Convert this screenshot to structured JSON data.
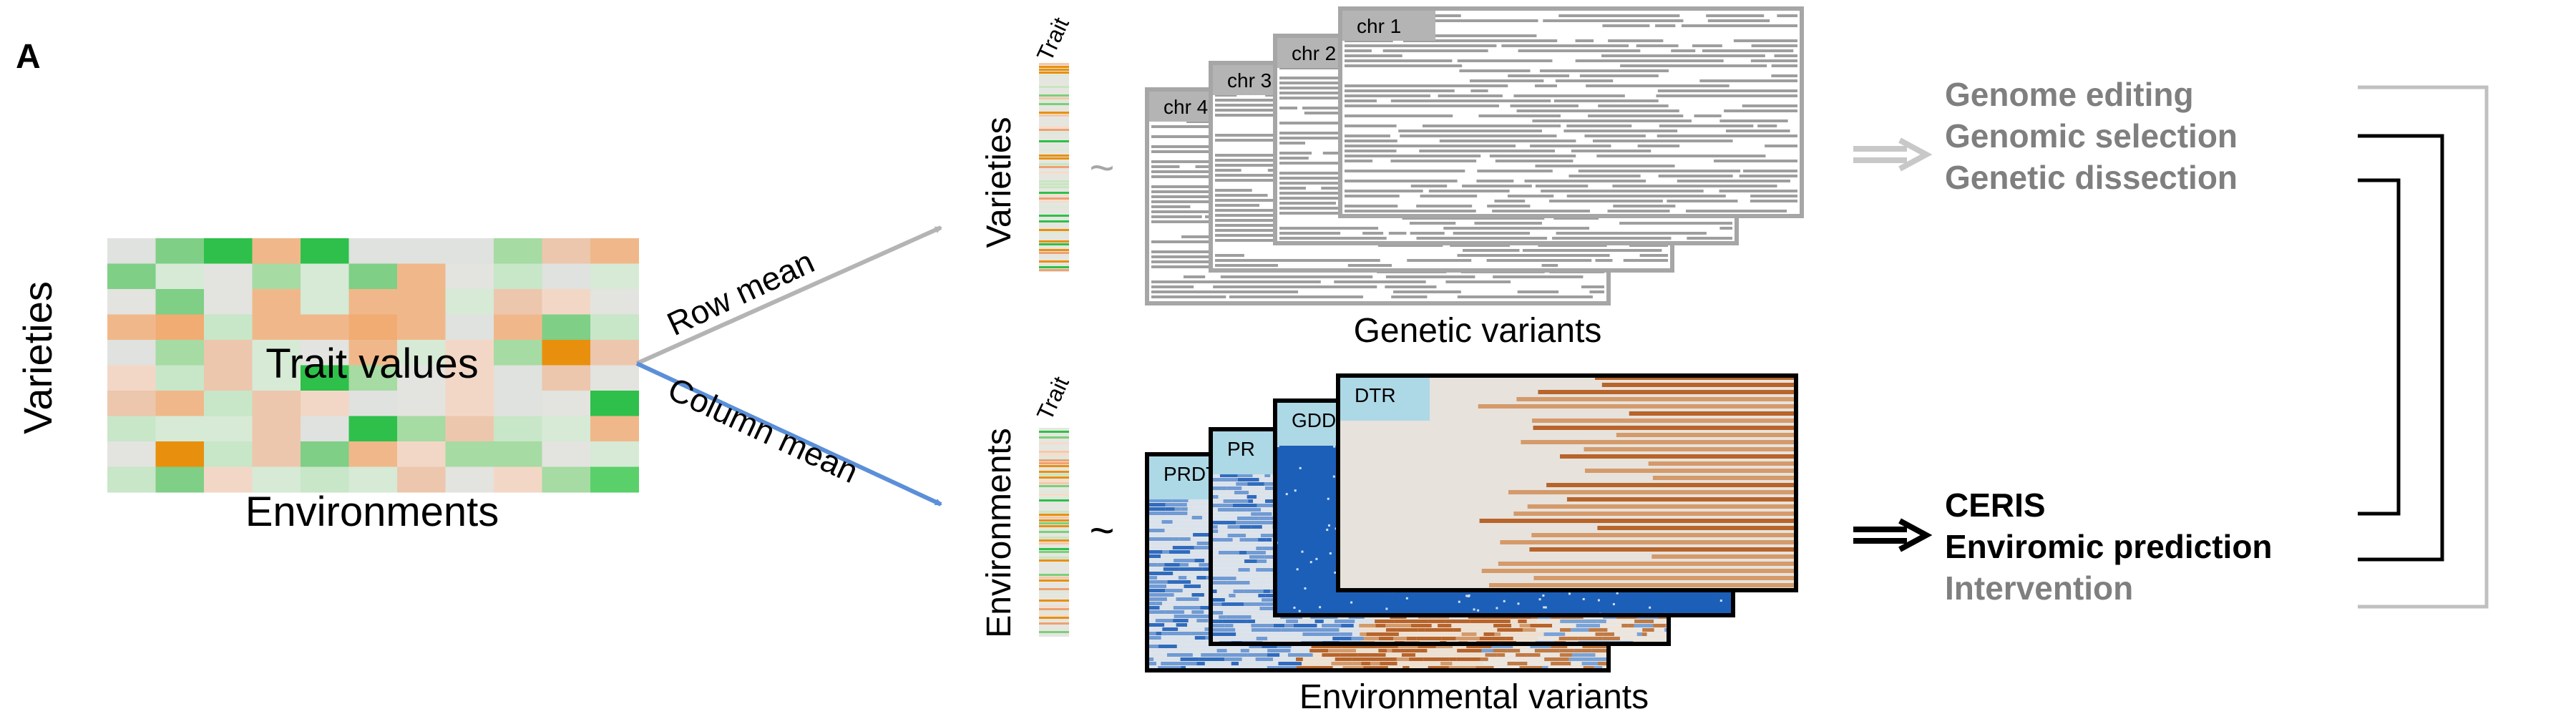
{
  "panel_label": "A",
  "left": {
    "varieties_label": "Varieties",
    "trait_values_label": "Trait values",
    "environments_label": "Environments"
  },
  "arrows": {
    "row_mean": "Row mean",
    "column_mean": "Column mean"
  },
  "genetic": {
    "trait_label": "Trait",
    "varieties_label": "Varieties",
    "tilde": "~",
    "chromosomes": [
      "chr 1",
      "chr 2",
      "chr 3",
      "chr 4"
    ],
    "caption": "Genetic variants"
  },
  "environmental": {
    "trait_label": "Trait",
    "environments_label": "Environments",
    "tilde": "~",
    "params": [
      "DTR",
      "GDD",
      "PR",
      "PRDTR"
    ],
    "caption": "Environmental variants"
  },
  "applications": {
    "genetic": [
      "Genome editing",
      "Genomic selection",
      "Genetic dissection"
    ],
    "environmental": [
      "CERIS",
      "Enviromic prediction",
      "Intervention"
    ]
  },
  "colors": {
    "gray_text": "#7f7f7f",
    "light_gray": "#bfbfbf",
    "row_arrow": "#b4b4b4",
    "col_arrow": "#5b8fd8",
    "green": "#2ec04a",
    "orange": "#e8900e",
    "env_blue": "#1c5fb8",
    "env_brown": "#b8642a",
    "label_box": "#add8e6"
  }
}
